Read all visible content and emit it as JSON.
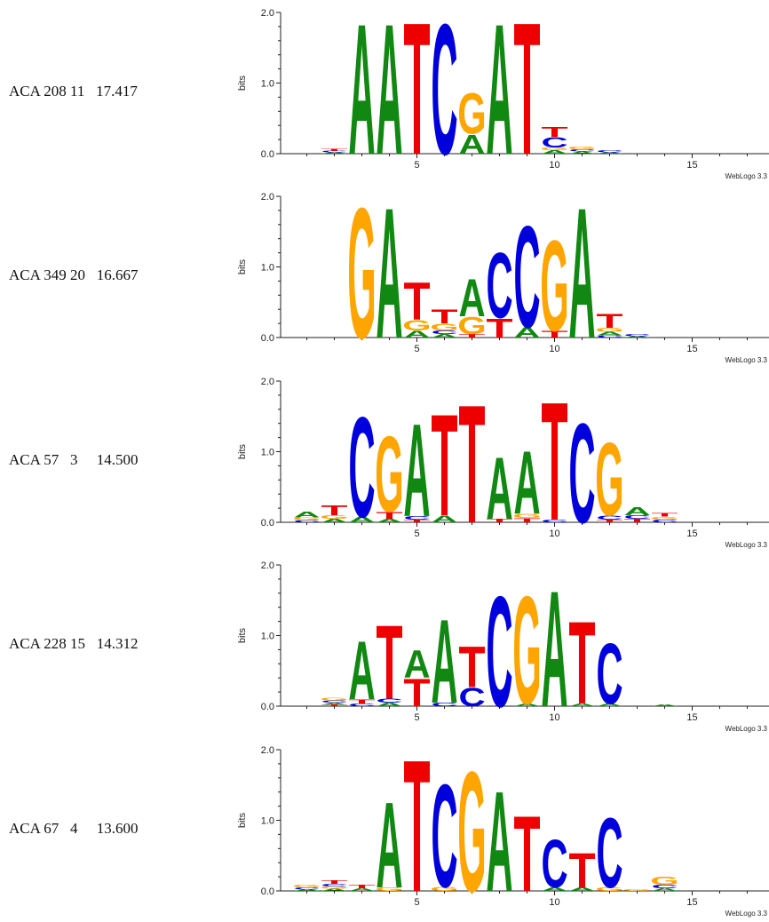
{
  "colors": {
    "A": "#118811",
    "C": "#0000dd",
    "G": "#ffa500",
    "T": "#ee0000"
  },
  "chart_data": [
    {
      "type": "sequence_logo",
      "label": "ACA 208 11   17.417",
      "ylabel": "bits",
      "yticks": [
        "0.0",
        "1.0",
        "2.0"
      ],
      "ylim": [
        0,
        2
      ],
      "xticks": [
        "5",
        "10",
        "15"
      ],
      "footer": "WebLogo 3.3",
      "positions": [
        {
          "pos": 2,
          "stack": [
            {
              "l": "A",
              "b": 0.02
            },
            {
              "l": "C",
              "b": 0.02
            },
            {
              "l": "T",
              "b": 0.03
            }
          ]
        },
        {
          "pos": 3,
          "stack": [
            {
              "l": "A",
              "b": 1.9
            }
          ]
        },
        {
          "pos": 4,
          "stack": [
            {
              "l": "A",
              "b": 1.9
            }
          ]
        },
        {
          "pos": 5,
          "stack": [
            {
              "l": "T",
              "b": 1.92
            }
          ]
        },
        {
          "pos": 6,
          "stack": [
            {
              "l": "C",
              "b": 1.9
            }
          ]
        },
        {
          "pos": 7,
          "stack": [
            {
              "l": "A",
              "b": 0.28
            },
            {
              "l": "G",
              "b": 0.6
            }
          ]
        },
        {
          "pos": 8,
          "stack": [
            {
              "l": "A",
              "b": 1.9
            }
          ]
        },
        {
          "pos": 9,
          "stack": [
            {
              "l": "T",
              "b": 1.92
            }
          ]
        },
        {
          "pos": 10,
          "stack": [
            {
              "l": "A",
              "b": 0.05
            },
            {
              "l": "G",
              "b": 0.04
            },
            {
              "l": "C",
              "b": 0.15
            },
            {
              "l": "T",
              "b": 0.14
            }
          ]
        },
        {
          "pos": 11,
          "stack": [
            {
              "l": "A",
              "b": 0.03
            },
            {
              "l": "C",
              "b": 0.03
            },
            {
              "l": "G",
              "b": 0.04
            }
          ]
        },
        {
          "pos": 12,
          "stack": [
            {
              "l": "A",
              "b": 0.02
            },
            {
              "l": "C",
              "b": 0.03
            }
          ]
        }
      ]
    },
    {
      "type": "sequence_logo",
      "label": "ACA 349 20   16.667",
      "ylabel": "bits",
      "yticks": [
        "0.0",
        "1.0",
        "2.0"
      ],
      "ylim": [
        0,
        2
      ],
      "xticks": [
        "5",
        "10",
        "15"
      ],
      "footer": "WebLogo 3.3",
      "positions": [
        {
          "pos": 3,
          "stack": [
            {
              "l": "G",
              "b": 1.9
            }
          ]
        },
        {
          "pos": 4,
          "stack": [
            {
              "l": "A",
              "b": 1.9
            }
          ]
        },
        {
          "pos": 5,
          "stack": [
            {
              "l": "A",
              "b": 0.1
            },
            {
              "l": "G",
              "b": 0.15
            },
            {
              "l": "T",
              "b": 0.55
            }
          ]
        },
        {
          "pos": 6,
          "stack": [
            {
              "l": "A",
              "b": 0.05
            },
            {
              "l": "C",
              "b": 0.05
            },
            {
              "l": "G",
              "b": 0.1
            },
            {
              "l": "T",
              "b": 0.2
            }
          ]
        },
        {
          "pos": 7,
          "stack": [
            {
              "l": "T",
              "b": 0.05
            },
            {
              "l": "G",
              "b": 0.25
            },
            {
              "l": "A",
              "b": 0.55
            }
          ]
        },
        {
          "pos": 8,
          "stack": [
            {
              "l": "T",
              "b": 0.28
            },
            {
              "l": "C",
              "b": 0.95
            }
          ]
        },
        {
          "pos": 9,
          "stack": [
            {
              "l": "A",
              "b": 0.15
            },
            {
              "l": "C",
              "b": 1.48
            }
          ]
        },
        {
          "pos": 10,
          "stack": [
            {
              "l": "T",
              "b": 0.1
            },
            {
              "l": "G",
              "b": 1.32
            }
          ]
        },
        {
          "pos": 11,
          "stack": [
            {
              "l": "A",
              "b": 1.9
            }
          ]
        },
        {
          "pos": 12,
          "stack": [
            {
              "l": "C",
              "b": 0.03
            },
            {
              "l": "A",
              "b": 0.05
            },
            {
              "l": "G",
              "b": 0.06
            },
            {
              "l": "T",
              "b": 0.2
            }
          ]
        },
        {
          "pos": 13,
          "stack": [
            {
              "l": "A",
              "b": 0.02
            },
            {
              "l": "C",
              "b": 0.03
            }
          ]
        }
      ]
    },
    {
      "type": "sequence_logo",
      "label": "ACA 57   3     14.500",
      "ylabel": "bits",
      "yticks": [
        "0.0",
        "1.0",
        "2.0"
      ],
      "ylim": [
        0,
        2
      ],
      "xticks": [
        "5",
        "10",
        "15"
      ],
      "footer": "WebLogo 3.3",
      "positions": [
        {
          "pos": 1,
          "stack": [
            {
              "l": "C",
              "b": 0.03
            },
            {
              "l": "G",
              "b": 0.04
            },
            {
              "l": "A",
              "b": 0.08
            }
          ]
        },
        {
          "pos": 2,
          "stack": [
            {
              "l": "A",
              "b": 0.05
            },
            {
              "l": "G",
              "b": 0.05
            },
            {
              "l": "T",
              "b": 0.14
            }
          ]
        },
        {
          "pos": 3,
          "stack": [
            {
              "l": "A",
              "b": 0.08
            },
            {
              "l": "C",
              "b": 1.46
            }
          ]
        },
        {
          "pos": 4,
          "stack": [
            {
              "l": "A",
              "b": 0.05
            },
            {
              "l": "T",
              "b": 0.1
            },
            {
              "l": "G",
              "b": 1.1
            }
          ]
        },
        {
          "pos": 5,
          "stack": [
            {
              "l": "T",
              "b": 0.04
            },
            {
              "l": "C",
              "b": 0.05
            },
            {
              "l": "A",
              "b": 1.35
            }
          ]
        },
        {
          "pos": 6,
          "stack": [
            {
              "l": "A",
              "b": 0.1
            },
            {
              "l": "T",
              "b": 1.48
            }
          ]
        },
        {
          "pos": 7,
          "stack": [
            {
              "l": "T",
              "b": 1.72
            }
          ]
        },
        {
          "pos": 8,
          "stack": [
            {
              "l": "T",
              "b": 0.05
            },
            {
              "l": "A",
              "b": 0.9
            }
          ]
        },
        {
          "pos": 9,
          "stack": [
            {
              "l": "T",
              "b": 0.06
            },
            {
              "l": "G",
              "b": 0.06
            },
            {
              "l": "A",
              "b": 0.92
            }
          ]
        },
        {
          "pos": 10,
          "stack": [
            {
              "l": "C",
              "b": 0.04
            },
            {
              "l": "T",
              "b": 1.72
            }
          ]
        },
        {
          "pos": 11,
          "stack": [
            {
              "l": "C",
              "b": 1.45
            }
          ]
        },
        {
          "pos": 12,
          "stack": [
            {
              "l": "T",
              "b": 0.04
            },
            {
              "l": "C",
              "b": 0.06
            },
            {
              "l": "G",
              "b": 1.06
            }
          ]
        },
        {
          "pos": 13,
          "stack": [
            {
              "l": "T",
              "b": 0.05
            },
            {
              "l": "C",
              "b": 0.05
            },
            {
              "l": "A",
              "b": 0.12
            }
          ]
        },
        {
          "pos": 14,
          "stack": [
            {
              "l": "C",
              "b": 0.04
            },
            {
              "l": "G",
              "b": 0.04
            },
            {
              "l": "T",
              "b": 0.05
            }
          ]
        }
      ]
    },
    {
      "type": "sequence_logo",
      "label": "ACA 228 15   14.312",
      "ylabel": "bits",
      "yticks": [
        "0.0",
        "1.0",
        "2.0"
      ],
      "ylim": [
        0,
        2
      ],
      "xticks": [
        "5",
        "10",
        "15"
      ],
      "footer": "WebLogo 3.3",
      "positions": [
        {
          "pos": 2,
          "stack": [
            {
              "l": "T",
              "b": 0.02
            },
            {
              "l": "A",
              "b": 0.03
            },
            {
              "l": "C",
              "b": 0.03
            },
            {
              "l": "G",
              "b": 0.04
            }
          ]
        },
        {
          "pos": 3,
          "stack": [
            {
              "l": "C",
              "b": 0.04
            },
            {
              "l": "T",
              "b": 0.06
            },
            {
              "l": "A",
              "b": 0.85
            }
          ]
        },
        {
          "pos": 4,
          "stack": [
            {
              "l": "A",
              "b": 0.05
            },
            {
              "l": "C",
              "b": 0.06
            },
            {
              "l": "T",
              "b": 1.08
            }
          ]
        },
        {
          "pos": 5,
          "stack": [
            {
              "l": "T",
              "b": 0.4
            },
            {
              "l": "A",
              "b": 0.4
            }
          ]
        },
        {
          "pos": 6,
          "stack": [
            {
              "l": "C",
              "b": 0.05
            },
            {
              "l": "A",
              "b": 1.22
            }
          ]
        },
        {
          "pos": 7,
          "stack": [
            {
              "l": "C",
              "b": 0.27
            },
            {
              "l": "T",
              "b": 0.6
            }
          ]
        },
        {
          "pos": 8,
          "stack": [
            {
              "l": "C",
              "b": 1.61
            }
          ]
        },
        {
          "pos": 9,
          "stack": [
            {
              "l": "A",
              "b": 0.04
            },
            {
              "l": "G",
              "b": 1.57
            }
          ]
        },
        {
          "pos": 10,
          "stack": [
            {
              "l": "A",
              "b": 1.69
            }
          ]
        },
        {
          "pos": 11,
          "stack": [
            {
              "l": "A",
              "b": 0.04
            },
            {
              "l": "T",
              "b": 1.2
            }
          ]
        },
        {
          "pos": 12,
          "stack": [
            {
              "l": "A",
              "b": 0.04
            },
            {
              "l": "C",
              "b": 0.88
            }
          ]
        },
        {
          "pos": 14,
          "stack": [
            {
              "l": "A",
              "b": 0.02
            }
          ]
        }
      ]
    },
    {
      "type": "sequence_logo",
      "label": "ACA 67   4     13.600",
      "ylabel": "bits",
      "yticks": [
        "0.0",
        "1.0",
        "2.0"
      ],
      "ylim": [
        0,
        2
      ],
      "xticks": [
        "5",
        "10",
        "15"
      ],
      "footer": "WebLogo 3.3",
      "positions": [
        {
          "pos": 1,
          "stack": [
            {
              "l": "A",
              "b": 0.02
            },
            {
              "l": "C",
              "b": 0.03
            },
            {
              "l": "G",
              "b": 0.04
            }
          ]
        },
        {
          "pos": 2,
          "stack": [
            {
              "l": "A",
              "b": 0.03
            },
            {
              "l": "G",
              "b": 0.03
            },
            {
              "l": "C",
              "b": 0.04
            },
            {
              "l": "T",
              "b": 0.05
            }
          ]
        },
        {
          "pos": 3,
          "stack": [
            {
              "l": "A",
              "b": 0.04
            },
            {
              "l": "T",
              "b": 0.05
            }
          ]
        },
        {
          "pos": 4,
          "stack": [
            {
              "l": "G",
              "b": 0.05
            },
            {
              "l": "A",
              "b": 1.25
            }
          ]
        },
        {
          "pos": 5,
          "stack": [
            {
              "l": "T",
              "b": 1.92
            }
          ]
        },
        {
          "pos": 6,
          "stack": [
            {
              "l": "G",
              "b": 0.06
            },
            {
              "l": "C",
              "b": 1.5
            }
          ]
        },
        {
          "pos": 7,
          "stack": [
            {
              "l": "G",
              "b": 1.75
            }
          ]
        },
        {
          "pos": 8,
          "stack": [
            {
              "l": "A",
              "b": 1.46
            }
          ]
        },
        {
          "pos": 9,
          "stack": [
            {
              "l": "T",
              "b": 1.1
            }
          ]
        },
        {
          "pos": 10,
          "stack": [
            {
              "l": "A",
              "b": 0.05
            },
            {
              "l": "C",
              "b": 0.7
            }
          ]
        },
        {
          "pos": 11,
          "stack": [
            {
              "l": "A",
              "b": 0.05
            },
            {
              "l": "T",
              "b": 0.5
            }
          ]
        },
        {
          "pos": 12,
          "stack": [
            {
              "l": "G",
              "b": 0.05
            },
            {
              "l": "C",
              "b": 1.02
            }
          ]
        },
        {
          "pos": 13,
          "stack": [
            {
              "l": "G",
              "b": 0.02
            }
          ]
        },
        {
          "pos": 14,
          "stack": [
            {
              "l": "A",
              "b": 0.04
            },
            {
              "l": "C",
              "b": 0.05
            },
            {
              "l": "G",
              "b": 0.12
            }
          ]
        }
      ]
    }
  ]
}
